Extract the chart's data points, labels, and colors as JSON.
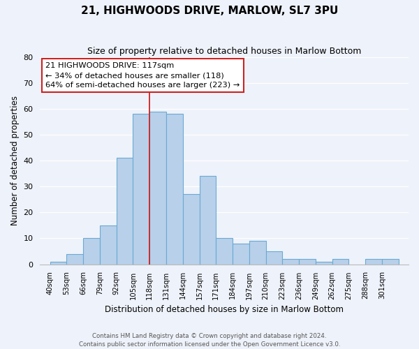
{
  "title": "21, HIGHWOODS DRIVE, MARLOW, SL7 3PU",
  "subtitle": "Size of property relative to detached houses in Marlow Bottom",
  "xlabel": "Distribution of detached houses by size in Marlow Bottom",
  "ylabel": "Number of detached properties",
  "bin_labels": [
    "40sqm",
    "53sqm",
    "66sqm",
    "79sqm",
    "92sqm",
    "105sqm",
    "118sqm",
    "131sqm",
    "144sqm",
    "157sqm",
    "171sqm",
    "184sqm",
    "197sqm",
    "210sqm",
    "223sqm",
    "236sqm",
    "249sqm",
    "262sqm",
    "275sqm",
    "288sqm",
    "301sqm"
  ],
  "bar_heights": [
    1,
    4,
    10,
    15,
    41,
    58,
    59,
    58,
    27,
    34,
    10,
    8,
    9,
    5,
    2,
    2,
    1,
    2,
    0,
    2,
    2
  ],
  "bar_color": "#b8d0ea",
  "bar_edge_color": "#6aaad4",
  "annotation_title": "21 HIGHWOODS DRIVE: 117sqm",
  "annotation_line1": "← 34% of detached houses are smaller (118)",
  "annotation_line2": "64% of semi-detached houses are larger (223) →",
  "vline_x": 118,
  "vline_color": "#cc2222",
  "ylim": [
    0,
    80
  ],
  "yticks": [
    0,
    10,
    20,
    30,
    40,
    50,
    60,
    70,
    80
  ],
  "footer1": "Contains HM Land Registry data © Crown copyright and database right 2024.",
  "footer2": "Contains public sector information licensed under the Open Government Licence v3.0.",
  "bg_color": "#eef2fa",
  "grid_color": "#ffffff",
  "title_fontsize": 11,
  "subtitle_fontsize": 9
}
